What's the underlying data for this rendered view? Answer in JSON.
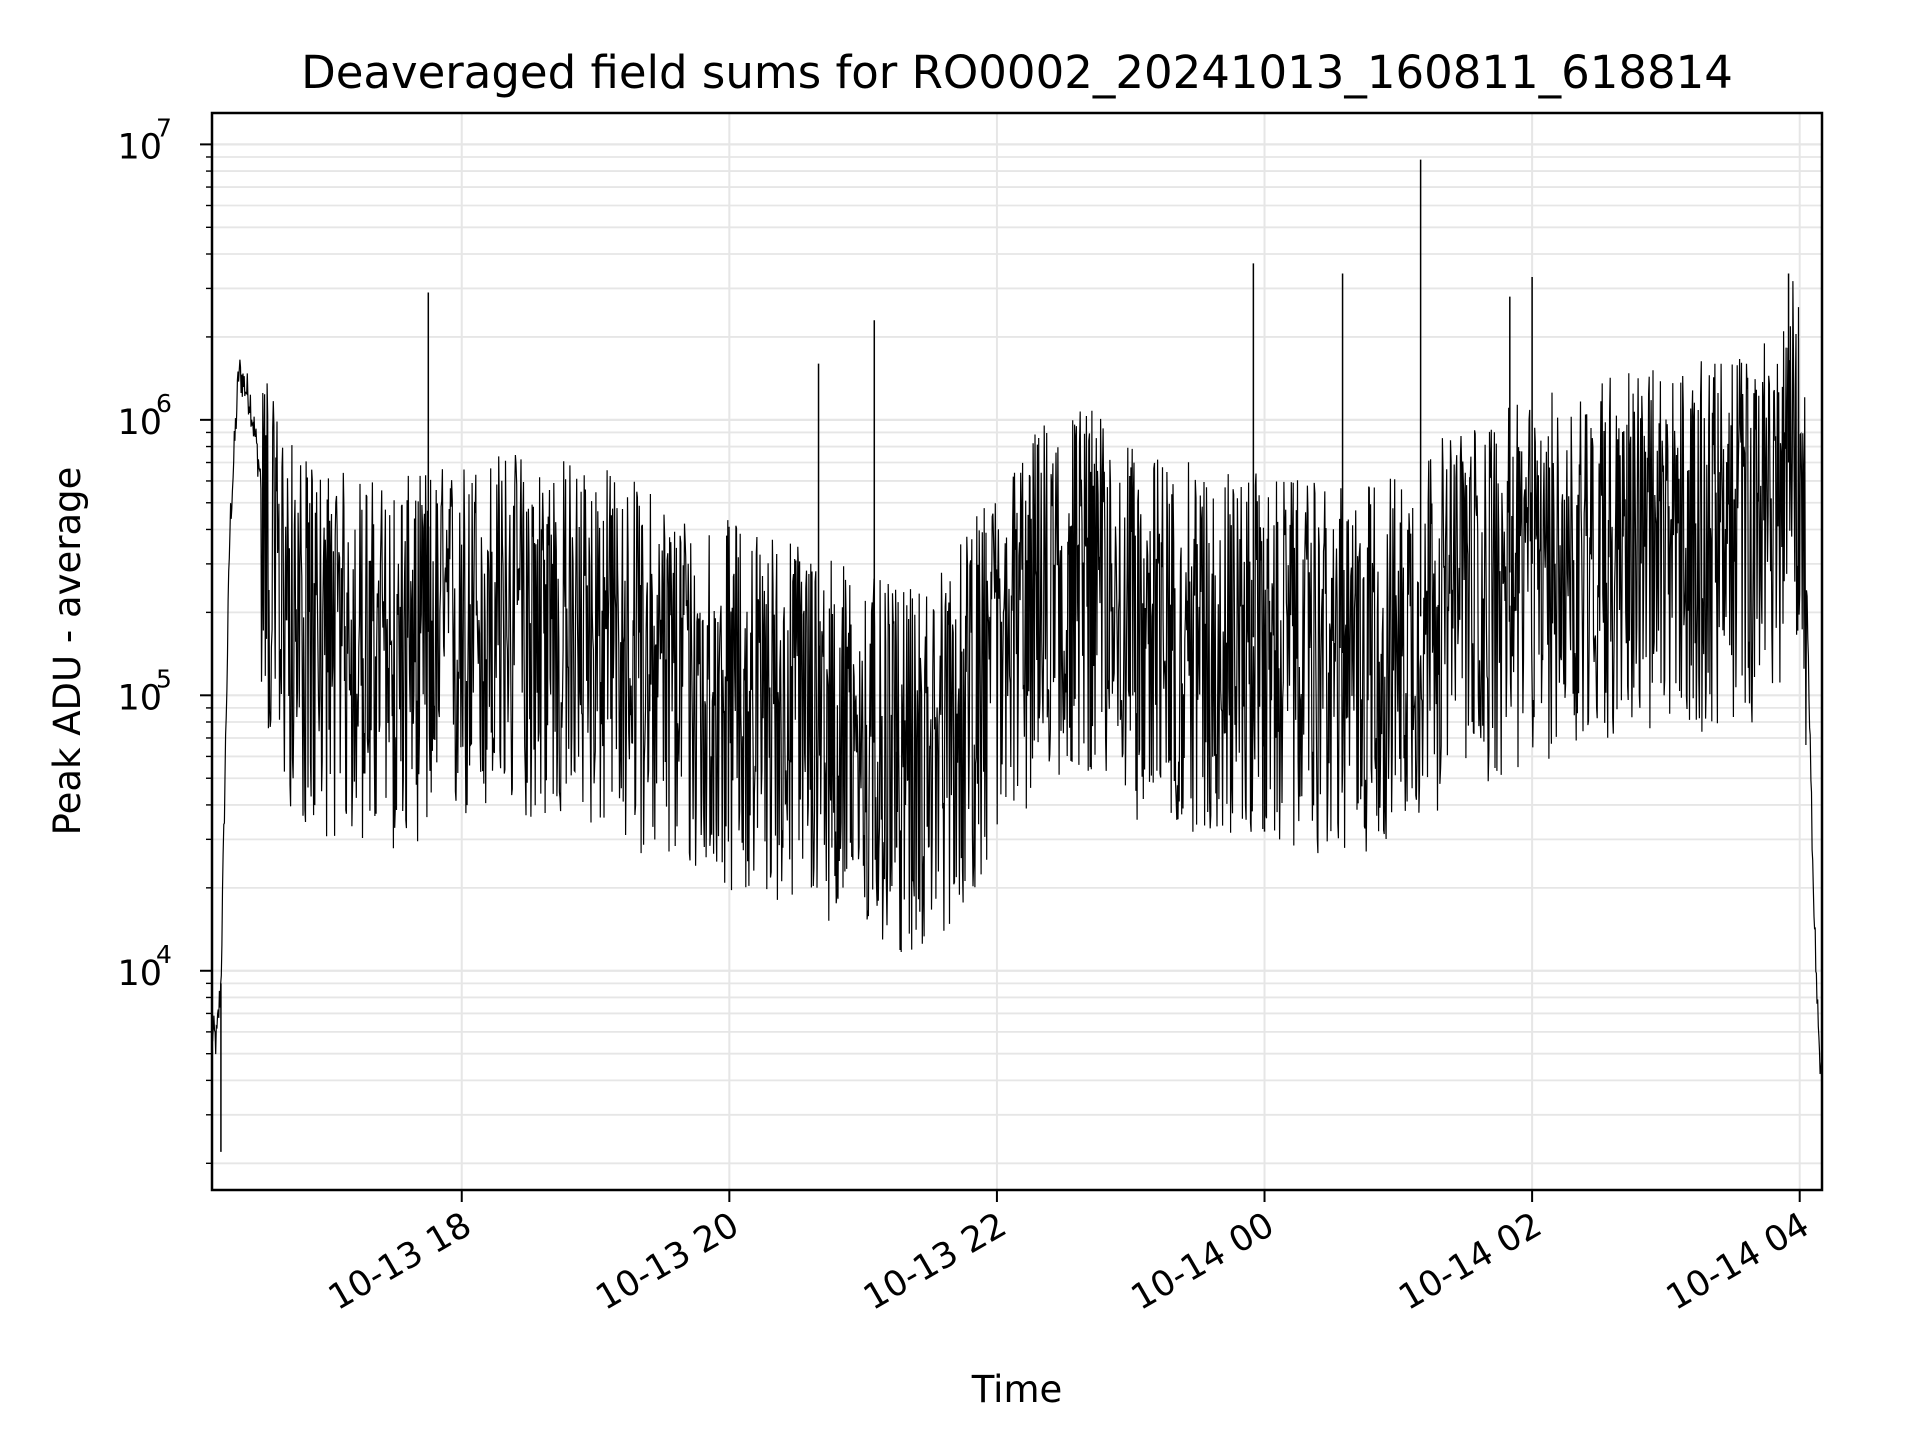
{
  "chart_data": {
    "type": "line",
    "title": "Deaveraged field sums for RO0002_20241013_160811_618814",
    "xlabel": "Time",
    "ylabel": "Peak ADU - average",
    "yscale": "log",
    "ylim": [
      1600,
      13000000
    ],
    "xlim": [
      "2024-10-13 16:08",
      "2024-10-14 04:10"
    ],
    "x_ticks": [
      "10-13 18",
      "10-13 20",
      "10-13 22",
      "10-14 00",
      "10-14 02",
      "10-14 04"
    ],
    "y_ticks": [
      {
        "base": "10",
        "exp": "4",
        "value": 10000
      },
      {
        "base": "10",
        "exp": "5",
        "value": 100000
      },
      {
        "base": "10",
        "exp": "6",
        "value": 1000000
      },
      {
        "base": "10",
        "exp": "7",
        "value": 10000000
      }
    ],
    "grid": true,
    "line_color": "#000000",
    "series": [
      {
        "x": [
          "2024-10-13 16:08",
          "2024-10-13 16:10",
          "2024-10-13 16:12",
          "2024-10-13 16:14",
          "2024-10-13 16:16",
          "2024-10-13 16:20",
          "2024-10-13 16:25",
          "2024-10-13 16:30",
          "2024-10-13 16:35",
          "2024-10-13 16:40",
          "2024-10-13 16:45",
          "2024-10-13 16:50",
          "2024-10-13 17:00",
          "2024-10-13 17:15",
          "2024-10-13 17:30",
          "2024-10-13 17:45",
          "2024-10-13 18:00",
          "2024-10-13 18:20",
          "2024-10-13 18:40",
          "2024-10-13 19:00",
          "2024-10-13 19:20",
          "2024-10-13 19:40",
          "2024-10-13 20:00",
          "2024-10-13 20:20",
          "2024-10-13 20:40",
          "2024-10-13 21:00",
          "2024-10-13 21:20",
          "2024-10-13 21:40",
          "2024-10-13 22:00",
          "2024-10-13 22:20",
          "2024-10-13 22:40",
          "2024-10-13 23:00",
          "2024-10-13 23:20",
          "2024-10-13 23:40",
          "2024-10-14 00:00",
          "2024-10-14 00:20",
          "2024-10-14 00:40",
          "2024-10-14 01:00",
          "2024-10-14 01:20",
          "2024-10-14 01:40",
          "2024-10-14 02:00",
          "2024-10-14 02:20",
          "2024-10-14 02:40",
          "2024-10-14 03:00",
          "2024-10-14 03:20",
          "2024-10-14 03:40",
          "2024-10-14 03:55",
          "2024-10-14 04:00",
          "2024-10-14 04:03",
          "2024-10-14 04:06",
          "2024-10-14 04:08",
          "2024-10-14 04:10"
        ],
        "y": [
          6000,
          5500,
          9000,
          60000,
          400000,
          1500000,
          1200000,
          600000,
          300000,
          250000,
          200000,
          180000,
          170000,
          160000,
          150000,
          170000,
          180000,
          200000,
          190000,
          180000,
          150000,
          120000,
          110000,
          100000,
          90000,
          70000,
          60000,
          80000,
          150000,
          250000,
          300000,
          200000,
          180000,
          170000,
          160000,
          150000,
          140000,
          170000,
          220000,
          260000,
          300000,
          350000,
          400000,
          380000,
          420000,
          450000,
          700000,
          1000000,
          300000,
          20000,
          8000,
          3500
        ],
        "spikes": [
          {
            "x": "2024-10-13 17:45",
            "y": 2900000
          },
          {
            "x": "2024-10-13 20:40",
            "y": 1600000
          },
          {
            "x": "2024-10-13 21:05",
            "y": 2300000
          },
          {
            "x": "2024-10-13 23:55",
            "y": 3700000
          },
          {
            "x": "2024-10-14 00:35",
            "y": 3400000
          },
          {
            "x": "2024-10-14 01:10",
            "y": 8800000
          },
          {
            "x": "2024-10-14 01:50",
            "y": 2800000
          },
          {
            "x": "2024-10-14 02:00",
            "y": 3300000
          },
          {
            "x": "2024-10-14 03:55",
            "y": 3400000
          }
        ],
        "dips": [
          {
            "x": "2024-10-13 16:12",
            "y": 2200
          },
          {
            "x": "2024-10-13 21:15",
            "y": 28000
          },
          {
            "x": "2024-10-14 00:00",
            "y": 32000
          },
          {
            "x": "2024-10-14 04:10",
            "y": 3500
          }
        ]
      }
    ]
  }
}
